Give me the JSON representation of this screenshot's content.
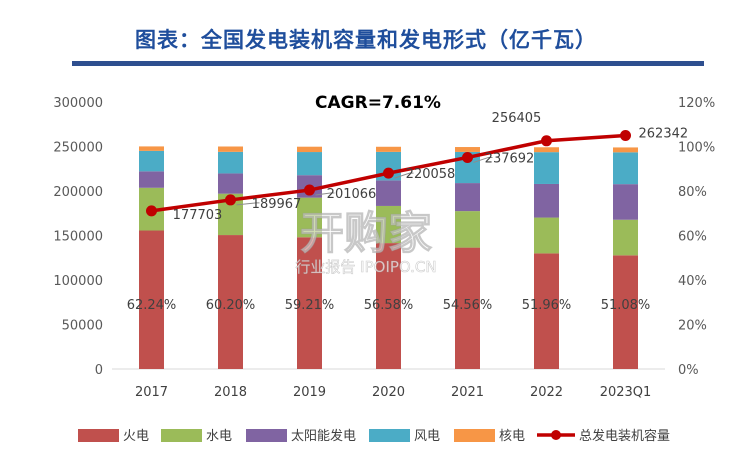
{
  "title": "图表：全国发电装机容量和发电形式（亿千瓦）",
  "watermark": {
    "main": "开购家",
    "sub": "行业报告 IPOIPO.CN"
  },
  "chart_data": {
    "type": "bar",
    "stacked": true,
    "title": "",
    "annotation": "CAGR=7.61%",
    "categories": [
      "2017",
      "2018",
      "2019",
      "2020",
      "2021",
      "2022",
      "2023Q1"
    ],
    "y_left": {
      "ticks": [
        "0",
        "50000",
        "100000",
        "150000",
        "200000",
        "250000",
        "300000"
      ],
      "range": [
        0,
        300000
      ]
    },
    "y_right": {
      "ticks": [
        "0%",
        "20%",
        "40%",
        "60%",
        "80%",
        "100%",
        "120%"
      ],
      "range": [
        0,
        1.2
      ]
    },
    "series": [
      {
        "name": "火电",
        "color": "#c0504d",
        "values": [
          0.6224,
          0.602,
          0.5921,
          0.5658,
          0.5456,
          0.5196,
          0.5108
        ]
      },
      {
        "name": "水电",
        "color": "#9bbb59",
        "values": [
          0.192,
          0.186,
          0.178,
          0.167,
          0.164,
          0.161,
          0.16
        ]
      },
      {
        "name": "太阳能发电",
        "color": "#8064a2",
        "values": [
          0.074,
          0.091,
          0.101,
          0.115,
          0.126,
          0.151,
          0.16
        ]
      },
      {
        "name": "风电",
        "color": "#4bacc6",
        "values": [
          0.092,
          0.097,
          0.104,
          0.128,
          0.14,
          0.143,
          0.143
        ]
      },
      {
        "name": "核电",
        "color": "#f79646",
        "values": [
          0.02,
          0.024,
          0.024,
          0.023,
          0.022,
          0.022,
          0.022
        ]
      }
    ],
    "share_labels": [
      "62.24%",
      "60.20%",
      "59.21%",
      "56.58%",
      "54.56%",
      "51.96%",
      "51.08%"
    ],
    "line": {
      "name": "总发电装机容量",
      "color": "#c00000",
      "values": [
        177703,
        189967,
        201066,
        220058,
        237692,
        256405,
        262342
      ]
    },
    "line_labels": [
      "177703",
      "189967",
      "201066",
      "220058",
      "237692",
      "256405",
      "262342"
    ],
    "legend_position": "bottom",
    "grid": false
  }
}
